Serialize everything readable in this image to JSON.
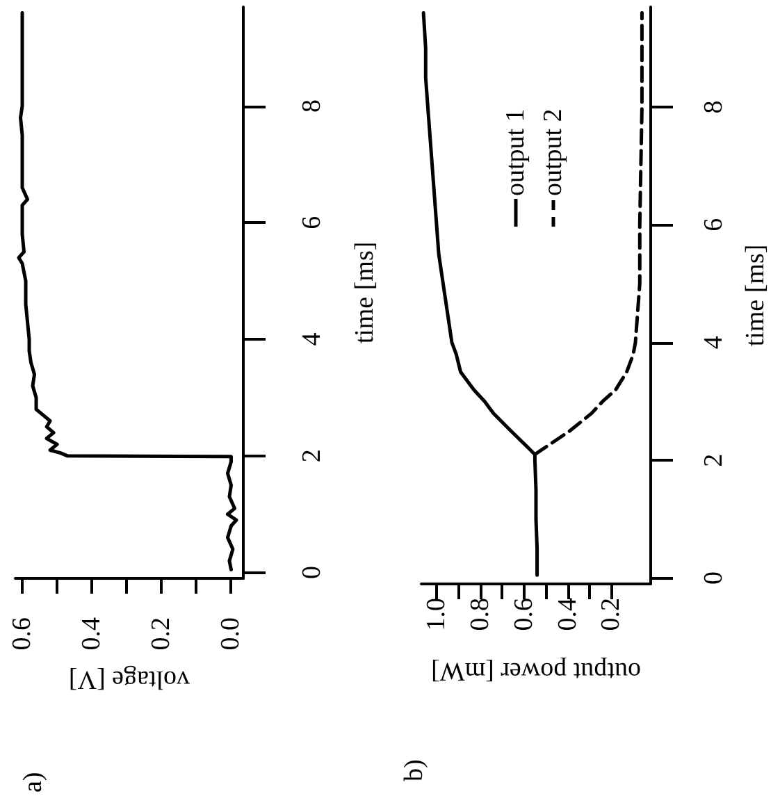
{
  "chart_data": [
    {
      "type": "line",
      "xlabel": "voltage [V]",
      "ylabel": "time [ms]",
      "annotations": [
        "a)"
      ],
      "xlim": [
        0.62,
        -0.035
      ],
      "xticks": [
        {
          "value": 0,
          "label": "0.0"
        },
        {
          "value": 0.1,
          "label": null
        },
        0.2,
        {
          "value": 0.3,
          "label": null
        },
        0.4,
        {
          "value": 0.5,
          "label": null
        },
        0.6
      ],
      "ylim": [
        -0.1,
        9.7
      ],
      "yticks": [
        0,
        2,
        4,
        6,
        8
      ],
      "grid": false,
      "legend": false,
      "marker": "none",
      "series": [
        {
          "color": "#000000",
          "line_style": "solid",
          "x": [
            0.0,
            0.005,
            -0.005,
            0.01,
            0.0,
            -0.015,
            0.01,
            -0.01,
            0.005,
            0.0,
            0.01,
            0.0,
            0.0,
            0.47,
            0.49,
            0.52,
            0.5,
            0.53,
            0.51,
            0.53,
            0.52,
            0.54,
            0.56,
            0.56,
            0.57,
            0.565,
            0.575,
            0.58,
            0.58,
            0.585,
            0.59,
            0.59,
            0.6,
            0.61,
            0.595,
            0.6,
            0.6,
            0.6,
            0.585,
            0.6,
            0.6,
            0.6,
            0.605,
            0.6,
            0.6,
            0.6,
            0.6
          ],
          "values": [
            0.05,
            0.2,
            0.4,
            0.6,
            0.8,
            0.9,
            1.0,
            1.1,
            1.3,
            1.5,
            1.7,
            1.9,
            1.99,
            2.0,
            2.05,
            2.1,
            2.2,
            2.3,
            2.4,
            2.5,
            2.6,
            2.7,
            2.8,
            3.0,
            3.2,
            3.4,
            3.6,
            3.8,
            4.0,
            4.3,
            4.6,
            5.0,
            5.3,
            5.4,
            5.5,
            5.8,
            6.0,
            6.3,
            6.4,
            6.6,
            7.0,
            7.5,
            7.8,
            8.0,
            8.5,
            9.0,
            9.6
          ]
        }
      ]
    },
    {
      "type": "line",
      "xlabel": "output power [mW]",
      "ylabel": "time [ms]",
      "annotations": [
        "b)"
      ],
      "xlim": [
        1.07,
        0.02
      ],
      "xticks": [
        0.2,
        {
          "value": 0.3,
          "label": null
        },
        0.4,
        {
          "value": 0.5,
          "label": null
        },
        0.6,
        {
          "value": 0.7,
          "label": null
        },
        0.8,
        {
          "value": 0.9,
          "label": null
        },
        {
          "value": 1,
          "label": "1.0"
        }
      ],
      "ylim": [
        -0.1,
        9.7
      ],
      "yticks": [
        0,
        2,
        4,
        6,
        8
      ],
      "grid": false,
      "legend": "top",
      "marker": "none",
      "series": [
        {
          "name": "output 1",
          "color": "#000000",
          "line_style": "solid",
          "x": [
            0.54,
            0.54,
            0.545,
            0.545,
            0.55,
            0.55,
            0.66,
            0.74,
            0.78,
            0.83,
            0.89,
            0.91,
            0.93,
            0.95,
            0.97,
            0.99,
            1.0,
            1.01,
            1.02,
            1.03,
            1.04,
            1.05,
            1.05,
            1.06
          ],
          "values": [
            0.05,
            0.5,
            1.0,
            1.5,
            2.0,
            2.1,
            2.5,
            2.8,
            3.0,
            3.2,
            3.5,
            3.8,
            4.0,
            4.5,
            5.0,
            5.5,
            6.0,
            6.5,
            7.0,
            7.5,
            8.0,
            8.5,
            9.0,
            9.6
          ]
        },
        {
          "name": "output 2",
          "color": "#000000",
          "line_style": "dashed",
          "x": [
            0.55,
            0.47,
            0.39,
            0.29,
            0.24,
            0.18,
            0.13,
            0.1,
            0.09,
            0.08,
            0.07,
            0.07,
            0.065,
            0.06,
            0.06,
            0.06
          ],
          "values": [
            2.1,
            2.3,
            2.5,
            2.8,
            3.0,
            3.2,
            3.5,
            3.8,
            4.0,
            4.5,
            5.0,
            6.0,
            7.0,
            8.0,
            9.0,
            9.6
          ]
        }
      ]
    }
  ]
}
